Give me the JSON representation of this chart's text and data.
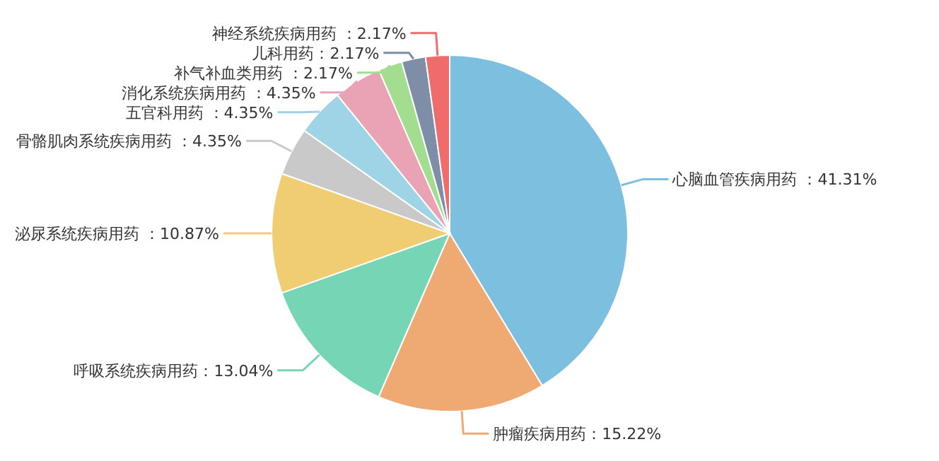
{
  "chart_data": {
    "type": "pie",
    "categories": [
      "心脑血管疾病用药",
      "肿瘤疾病用药",
      "呼吸系统疾病用药",
      "泌尿系统疾病用药",
      "骨骼肌肉系统疾病用药",
      "五官科用药",
      "消化系统疾病用药",
      "补气补血类用药",
      "儿科用药",
      "神经系统疾病用药"
    ],
    "values": [
      41.31,
      15.22,
      13.04,
      10.87,
      4.35,
      4.35,
      4.35,
      2.17,
      2.17,
      2.17
    ],
    "colors": [
      "#7dbfdf",
      "#eeaa72",
      "#76d5b4",
      "#f0cd73",
      "#c9c9c9",
      "#9fd3e6",
      "#e9a3b4",
      "#a3dd8f",
      "#7e8ea6",
      "#f06b6b"
    ],
    "value_labels": [
      " ：41.31%",
      "：15.22%",
      "：13.04%",
      " ：10.87%",
      " ：4.35%",
      " ：4.35%",
      " ：4.35%",
      " ：2.17%",
      "：2.17%",
      " ：2.17%"
    ]
  }
}
